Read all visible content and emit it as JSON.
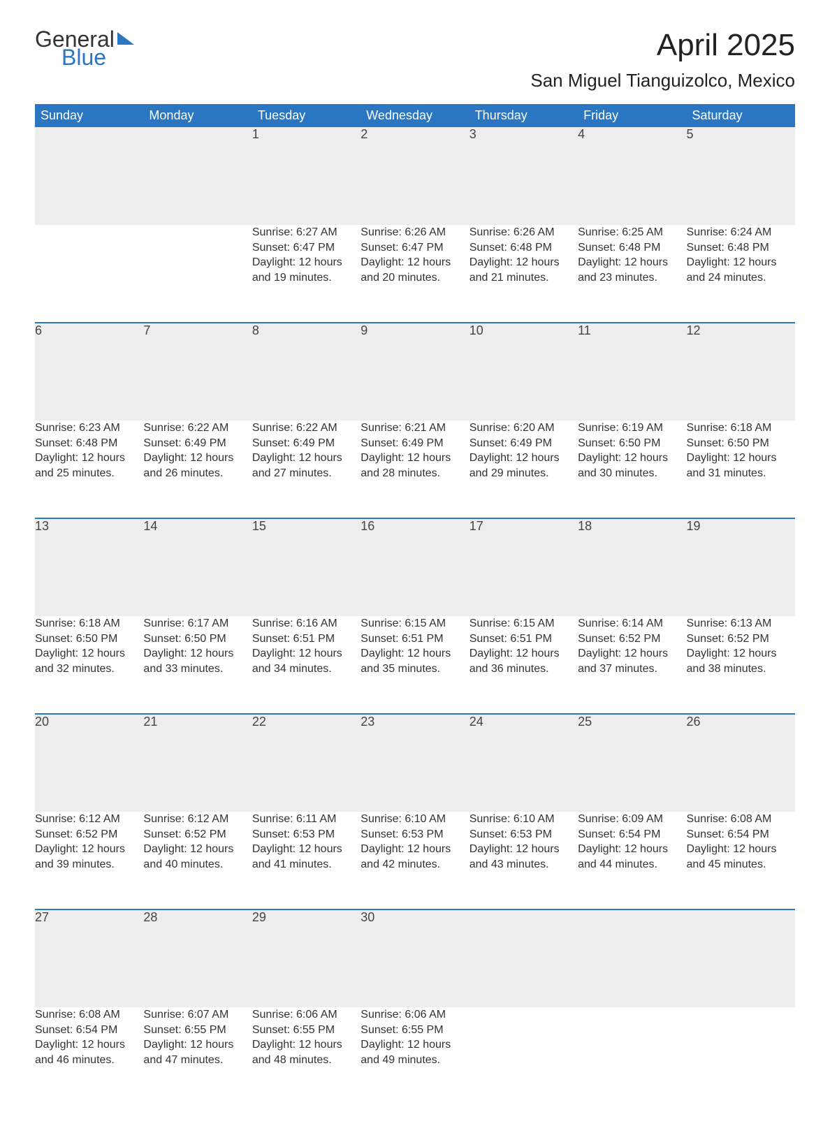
{
  "brand": {
    "part1": "General",
    "part2": "Blue",
    "accent_color": "#2b76c2"
  },
  "title": "April 2025",
  "location": "San Miguel Tianguizolco, Mexico",
  "colors": {
    "header_bg": "#2b76c2",
    "header_text": "#ffffff",
    "daynum_bg": "#ededed",
    "row_divider": "#2b76c2",
    "body_text": "#333333",
    "page_bg": "#ffffff"
  },
  "weekdays": [
    "Sunday",
    "Monday",
    "Tuesday",
    "Wednesday",
    "Thursday",
    "Friday",
    "Saturday"
  ],
  "labels": {
    "sunrise": "Sunrise: ",
    "sunset": "Sunset: ",
    "daylight": "Daylight: "
  },
  "weeks": [
    [
      null,
      null,
      {
        "n": "1",
        "sunrise": "6:27 AM",
        "sunset": "6:47 PM",
        "daylight": "12 hours and 19 minutes."
      },
      {
        "n": "2",
        "sunrise": "6:26 AM",
        "sunset": "6:47 PM",
        "daylight": "12 hours and 20 minutes."
      },
      {
        "n": "3",
        "sunrise": "6:26 AM",
        "sunset": "6:48 PM",
        "daylight": "12 hours and 21 minutes."
      },
      {
        "n": "4",
        "sunrise": "6:25 AM",
        "sunset": "6:48 PM",
        "daylight": "12 hours and 23 minutes."
      },
      {
        "n": "5",
        "sunrise": "6:24 AM",
        "sunset": "6:48 PM",
        "daylight": "12 hours and 24 minutes."
      }
    ],
    [
      {
        "n": "6",
        "sunrise": "6:23 AM",
        "sunset": "6:48 PM",
        "daylight": "12 hours and 25 minutes."
      },
      {
        "n": "7",
        "sunrise": "6:22 AM",
        "sunset": "6:49 PM",
        "daylight": "12 hours and 26 minutes."
      },
      {
        "n": "8",
        "sunrise": "6:22 AM",
        "sunset": "6:49 PM",
        "daylight": "12 hours and 27 minutes."
      },
      {
        "n": "9",
        "sunrise": "6:21 AM",
        "sunset": "6:49 PM",
        "daylight": "12 hours and 28 minutes."
      },
      {
        "n": "10",
        "sunrise": "6:20 AM",
        "sunset": "6:49 PM",
        "daylight": "12 hours and 29 minutes."
      },
      {
        "n": "11",
        "sunrise": "6:19 AM",
        "sunset": "6:50 PM",
        "daylight": "12 hours and 30 minutes."
      },
      {
        "n": "12",
        "sunrise": "6:18 AM",
        "sunset": "6:50 PM",
        "daylight": "12 hours and 31 minutes."
      }
    ],
    [
      {
        "n": "13",
        "sunrise": "6:18 AM",
        "sunset": "6:50 PM",
        "daylight": "12 hours and 32 minutes."
      },
      {
        "n": "14",
        "sunrise": "6:17 AM",
        "sunset": "6:50 PM",
        "daylight": "12 hours and 33 minutes."
      },
      {
        "n": "15",
        "sunrise": "6:16 AM",
        "sunset": "6:51 PM",
        "daylight": "12 hours and 34 minutes."
      },
      {
        "n": "16",
        "sunrise": "6:15 AM",
        "sunset": "6:51 PM",
        "daylight": "12 hours and 35 minutes."
      },
      {
        "n": "17",
        "sunrise": "6:15 AM",
        "sunset": "6:51 PM",
        "daylight": "12 hours and 36 minutes."
      },
      {
        "n": "18",
        "sunrise": "6:14 AM",
        "sunset": "6:52 PM",
        "daylight": "12 hours and 37 minutes."
      },
      {
        "n": "19",
        "sunrise": "6:13 AM",
        "sunset": "6:52 PM",
        "daylight": "12 hours and 38 minutes."
      }
    ],
    [
      {
        "n": "20",
        "sunrise": "6:12 AM",
        "sunset": "6:52 PM",
        "daylight": "12 hours and 39 minutes."
      },
      {
        "n": "21",
        "sunrise": "6:12 AM",
        "sunset": "6:52 PM",
        "daylight": "12 hours and 40 minutes."
      },
      {
        "n": "22",
        "sunrise": "6:11 AM",
        "sunset": "6:53 PM",
        "daylight": "12 hours and 41 minutes."
      },
      {
        "n": "23",
        "sunrise": "6:10 AM",
        "sunset": "6:53 PM",
        "daylight": "12 hours and 42 minutes."
      },
      {
        "n": "24",
        "sunrise": "6:10 AM",
        "sunset": "6:53 PM",
        "daylight": "12 hours and 43 minutes."
      },
      {
        "n": "25",
        "sunrise": "6:09 AM",
        "sunset": "6:54 PM",
        "daylight": "12 hours and 44 minutes."
      },
      {
        "n": "26",
        "sunrise": "6:08 AM",
        "sunset": "6:54 PM",
        "daylight": "12 hours and 45 minutes."
      }
    ],
    [
      {
        "n": "27",
        "sunrise": "6:08 AM",
        "sunset": "6:54 PM",
        "daylight": "12 hours and 46 minutes."
      },
      {
        "n": "28",
        "sunrise": "6:07 AM",
        "sunset": "6:55 PM",
        "daylight": "12 hours and 47 minutes."
      },
      {
        "n": "29",
        "sunrise": "6:06 AM",
        "sunset": "6:55 PM",
        "daylight": "12 hours and 48 minutes."
      },
      {
        "n": "30",
        "sunrise": "6:06 AM",
        "sunset": "6:55 PM",
        "daylight": "12 hours and 49 minutes."
      },
      null,
      null,
      null
    ]
  ]
}
